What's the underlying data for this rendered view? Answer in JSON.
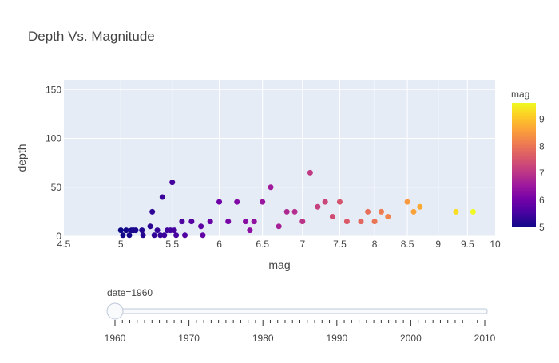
{
  "chart_data": {
    "type": "scatter",
    "title": "Depth Vs. Magnitude",
    "xlabel": "mag",
    "ylabel": "depth",
    "xlim": [
      4.5,
      10
    ],
    "ylim": [
      0,
      160
    ],
    "xticks": [
      {
        "value": 4.5,
        "label": "4.5"
      },
      {
        "value": 5,
        "label": "5"
      },
      {
        "value": 5.5,
        "label": "5.5"
      },
      {
        "value": 6,
        "label": "6"
      },
      {
        "value": 6.5,
        "label": "6.5"
      },
      {
        "value": 7,
        "label": "7"
      },
      {
        "value": 7.5,
        "label": "7.5"
      },
      {
        "value": 8,
        "label": "8"
      },
      {
        "value": 8.5,
        "label": "8.5"
      },
      {
        "value": 9,
        "label": "9"
      },
      {
        "value": 9.5,
        "label": "9.5"
      },
      {
        "value": 10,
        "label": "10"
      }
    ],
    "yticks": [
      {
        "value": 0,
        "label": "0"
      },
      {
        "value": 50,
        "label": "50"
      },
      {
        "value": 100,
        "label": "100"
      },
      {
        "value": 150,
        "label": "150"
      }
    ],
    "x_scale": "log",
    "grid": true,
    "colorbar": {
      "title": "mag",
      "range": [
        5,
        9.6
      ],
      "ticks": [
        {
          "value": 5,
          "label": "5"
        },
        {
          "value": 6,
          "label": "6"
        },
        {
          "value": 7,
          "label": "7"
        },
        {
          "value": 8,
          "label": "8"
        },
        {
          "value": 9,
          "label": "9"
        }
      ],
      "colorscale": [
        "#0d0887",
        "#46039f",
        "#7201a8",
        "#9c179e",
        "#bd3786",
        "#d8576b",
        "#ed7953",
        "#fb9f3a",
        "#fdca26",
        "#f0f921"
      ]
    },
    "points": [
      {
        "x": 5.0,
        "y": 6
      },
      {
        "x": 5.02,
        "y": 1
      },
      {
        "x": 5.05,
        "y": 6
      },
      {
        "x": 5.08,
        "y": 1
      },
      {
        "x": 5.1,
        "y": 6
      },
      {
        "x": 5.12,
        "y": 6
      },
      {
        "x": 5.14,
        "y": 6
      },
      {
        "x": 5.2,
        "y": 6
      },
      {
        "x": 5.21,
        "y": 1
      },
      {
        "x": 5.28,
        "y": 10
      },
      {
        "x": 5.3,
        "y": 25
      },
      {
        "x": 5.32,
        "y": 1
      },
      {
        "x": 5.35,
        "y": 6
      },
      {
        "x": 5.38,
        "y": 1
      },
      {
        "x": 5.4,
        "y": 40
      },
      {
        "x": 5.42,
        "y": 1
      },
      {
        "x": 5.45,
        "y": 6
      },
      {
        "x": 5.48,
        "y": 6
      },
      {
        "x": 5.5,
        "y": 55
      },
      {
        "x": 5.52,
        "y": 6
      },
      {
        "x": 5.54,
        "y": 1
      },
      {
        "x": 5.6,
        "y": 15
      },
      {
        "x": 5.63,
        "y": 1
      },
      {
        "x": 5.7,
        "y": 15
      },
      {
        "x": 5.8,
        "y": 10
      },
      {
        "x": 5.82,
        "y": 1
      },
      {
        "x": 5.9,
        "y": 15
      },
      {
        "x": 6.0,
        "y": 35
      },
      {
        "x": 6.1,
        "y": 15
      },
      {
        "x": 6.2,
        "y": 35
      },
      {
        "x": 6.3,
        "y": 15
      },
      {
        "x": 6.35,
        "y": 6
      },
      {
        "x": 6.4,
        "y": 15
      },
      {
        "x": 6.5,
        "y": 35
      },
      {
        "x": 6.6,
        "y": 50
      },
      {
        "x": 6.7,
        "y": 10
      },
      {
        "x": 6.8,
        "y": 25
      },
      {
        "x": 6.9,
        "y": 25
      },
      {
        "x": 7.0,
        "y": 15
      },
      {
        "x": 7.1,
        "y": 65
      },
      {
        "x": 7.2,
        "y": 30
      },
      {
        "x": 7.3,
        "y": 35
      },
      {
        "x": 7.4,
        "y": 20
      },
      {
        "x": 7.5,
        "y": 35
      },
      {
        "x": 7.6,
        "y": 15
      },
      {
        "x": 7.8,
        "y": 15
      },
      {
        "x": 7.9,
        "y": 25
      },
      {
        "x": 8.0,
        "y": 15
      },
      {
        "x": 8.1,
        "y": 25
      },
      {
        "x": 8.2,
        "y": 20
      },
      {
        "x": 8.5,
        "y": 35
      },
      {
        "x": 8.6,
        "y": 25
      },
      {
        "x": 8.7,
        "y": 30
      },
      {
        "x": 9.3,
        "y": 25
      },
      {
        "x": 9.6,
        "y": 25
      }
    ]
  },
  "slider": {
    "label": "date=1960",
    "value": 1960,
    "range": [
      1960,
      2010
    ],
    "ticks": [
      {
        "value": 1960,
        "label": "1960"
      },
      {
        "value": 1970,
        "label": "1970"
      },
      {
        "value": 1980,
        "label": "1980"
      },
      {
        "value": 1990,
        "label": "1990"
      },
      {
        "value": 2000,
        "label": "2000"
      },
      {
        "value": 2010,
        "label": "2010"
      }
    ]
  }
}
